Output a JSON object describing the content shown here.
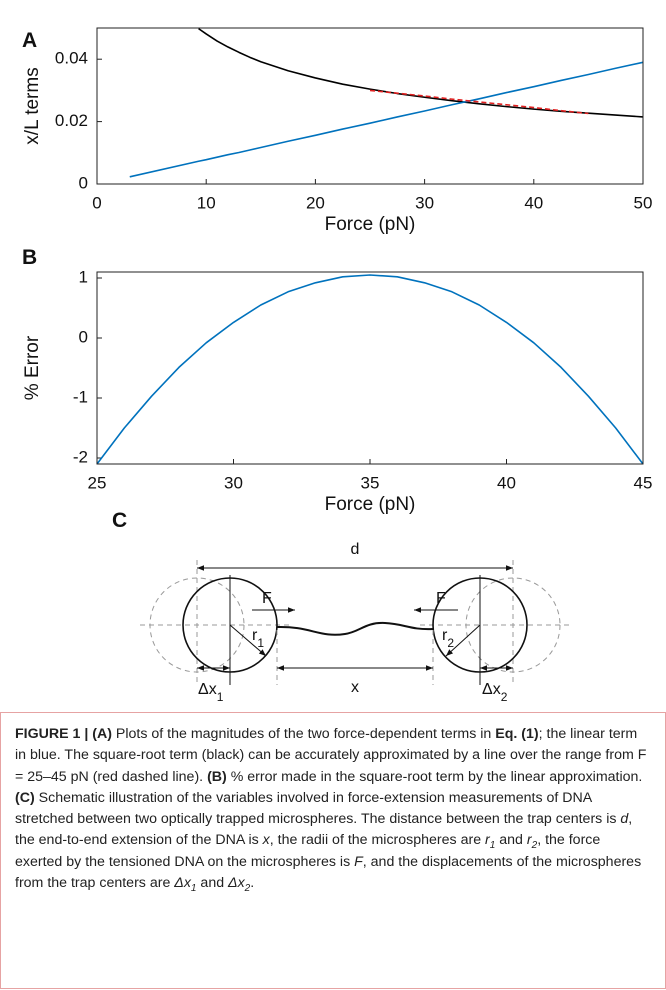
{
  "chart_data": [
    {
      "type": "line",
      "panel_label": "A",
      "y_label": "x/L terms",
      "x_label": "Force (pN)",
      "x": [
        3,
        9.3,
        10,
        11,
        12,
        13,
        14,
        15,
        17.5,
        20,
        22.5,
        25,
        27.5,
        30,
        32.5,
        35,
        37.5,
        40,
        42.5,
        45,
        47.5,
        50
      ],
      "series": [
        {
          "color": "#000000",
          "values": [
            null,
            0.0498,
            0.0481,
            0.0458,
            0.0439,
            0.0422,
            0.0406,
            0.0392,
            0.0363,
            0.034,
            0.032,
            0.0304,
            0.029,
            0.0278,
            0.0267,
            0.0257,
            0.0248,
            0.024,
            0.0233,
            0.0227,
            0.0221,
            0.0215
          ]
        },
        {
          "color": "#0072bd",
          "values": [
            0.0023,
            0.0073,
            0.0078,
            0.0086,
            0.0094,
            0.0101,
            0.0109,
            0.0117,
            0.0137,
            0.0156,
            0.0176,
            0.0195,
            0.0215,
            0.0234,
            0.0254,
            0.0273,
            0.0293,
            0.0312,
            0.0332,
            0.0351,
            0.0371,
            0.039
          ]
        },
        {
          "color": "#e02020",
          "dashed": true,
          "values": [
            null,
            null,
            null,
            null,
            null,
            null,
            null,
            null,
            null,
            null,
            null,
            0.03,
            0.0291,
            0.0282,
            0.0272,
            0.0263,
            0.0254,
            0.0245,
            0.0235,
            0.0226,
            null,
            null
          ]
        }
      ],
      "xlim": [
        0,
        50
      ],
      "xticks": [
        0,
        10,
        20,
        30,
        40,
        50
      ],
      "ylim": [
        0,
        0.05
      ],
      "yticks": [
        0,
        0.02,
        0.04
      ]
    },
    {
      "type": "line",
      "panel_label": "B",
      "y_label": "% Error",
      "x_label": "Force (pN)",
      "x": [
        25,
        26,
        27,
        28,
        29,
        30,
        31,
        32,
        33,
        34,
        35,
        36,
        37,
        38,
        39,
        40,
        41,
        42,
        43,
        44,
        45
      ],
      "series": [
        {
          "color": "#0072bd",
          "values": [
            -2.1,
            -1.5,
            -0.97,
            -0.49,
            -0.08,
            0.26,
            0.55,
            0.77,
            0.92,
            1.02,
            1.05,
            1.02,
            0.92,
            0.77,
            0.55,
            0.26,
            -0.08,
            -0.49,
            -0.97,
            -1.5,
            -2.1
          ]
        }
      ],
      "xlim": [
        25,
        45
      ],
      "xticks": [
        25,
        30,
        35,
        40,
        45
      ],
      "ylim": [
        -2.1,
        1.1
      ],
      "yticks": [
        -2,
        -1,
        0,
        1
      ]
    }
  ],
  "diagram": {
    "panel_label": "C",
    "d": "d",
    "F_left": "F",
    "F_right": "F",
    "r1": [
      "r",
      "1"
    ],
    "r2": [
      "r",
      "2"
    ],
    "x": "x",
    "dx1": [
      "Δx",
      "1"
    ],
    "dx2": [
      "Δx",
      "2"
    ]
  },
  "caption": [
    {
      "text": "FIGURE 1 | (A)",
      "bold": true
    },
    {
      "text": " Plots of the magnitudes of the two force-dependent terms in "
    },
    {
      "text": "Eq. (1)",
      "bold": true
    },
    {
      "text": "; the linear term in blue. The square-root term (black) can be accurately approximated by a line over the range from F = 25–45 pN (red dashed line). "
    },
    {
      "text": "(B)",
      "bold": true
    },
    {
      "text": " % error made in the square-root term by the linear approximation. "
    },
    {
      "text": "(C)",
      "bold": true
    },
    {
      "text": " Schematic illustration of the variables involved in force-extension measurements of DNA stretched between two optically trapped microspheres. The distance between the trap centers is "
    },
    {
      "text": "d",
      "italic": true
    },
    {
      "text": ", the end-to-end extension of the DNA is "
    },
    {
      "text": "x",
      "italic": true
    },
    {
      "text": ", the radii of the microspheres are "
    },
    {
      "text": "r",
      "italic": true
    },
    {
      "text": "1",
      "italic": true,
      "sub": true
    },
    {
      "text": " and "
    },
    {
      "text": "r",
      "italic": true
    },
    {
      "text": "2",
      "italic": true,
      "sub": true
    },
    {
      "text": ", the force exerted by the tensioned DNA on the microspheres is "
    },
    {
      "text": "F",
      "italic": true
    },
    {
      "text": ", and the displacements of the microspheres from the trap centers are "
    },
    {
      "text": "Δx",
      "italic": true
    },
    {
      "text": "1",
      "italic": true,
      "sub": true
    },
    {
      "text": " and "
    },
    {
      "text": "Δx",
      "italic": true
    },
    {
      "text": "2",
      "italic": true,
      "sub": true
    },
    {
      "text": "."
    }
  ]
}
